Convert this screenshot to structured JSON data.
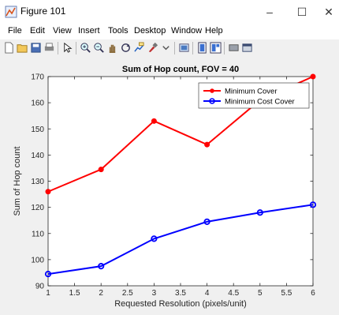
{
  "window": {
    "title": "Figure 101",
    "minimize_glyph": "–",
    "maximize_glyph": "☐",
    "close_glyph": "✕"
  },
  "menu": [
    "File",
    "Edit",
    "View",
    "Insert",
    "Tools",
    "Desktop",
    "Window",
    "Help"
  ],
  "toolbar_icons": [
    "new-figure-icon",
    "open-file-icon",
    "save-icon",
    "print-icon",
    "pointer-icon",
    "zoom-in-icon",
    "zoom-out-icon",
    "pan-icon",
    "rotate-3d-icon",
    "data-cursor-icon",
    "brush-icon",
    "link-plot-icon",
    "insert-colorbar-icon",
    "insert-legend-icon",
    "hide-plot-tools-icon",
    "show-plot-tools-icon"
  ],
  "chart_data": {
    "type": "line",
    "title": "Sum of Hop count, FOV = 40",
    "xlabel": "Requested Resolution (pixels/unit)",
    "ylabel": "Sum of Hop count",
    "xlim": [
      1,
      6
    ],
    "ylim": [
      90,
      170
    ],
    "xticks": [
      "1",
      "1.5",
      "2",
      "2.5",
      "3",
      "3.5",
      "4",
      "4.5",
      "5",
      "5.5",
      "6"
    ],
    "yticks": [
      "90",
      "100",
      "110",
      "120",
      "130",
      "140",
      "150",
      "160",
      "170"
    ],
    "x": [
      1,
      2,
      3,
      4,
      5,
      6
    ],
    "series": [
      {
        "name": "Minimum Cover",
        "color": "#ff0000",
        "marker": "dot",
        "values": [
          126,
          134.5,
          153,
          144,
          161,
          170
        ]
      },
      {
        "name": "Minimum Cost Cover",
        "color": "#0000ff",
        "marker": "circle",
        "values": [
          94.5,
          97.5,
          108,
          114.5,
          118,
          121
        ]
      }
    ],
    "grid": false,
    "legend": "top-right"
  }
}
